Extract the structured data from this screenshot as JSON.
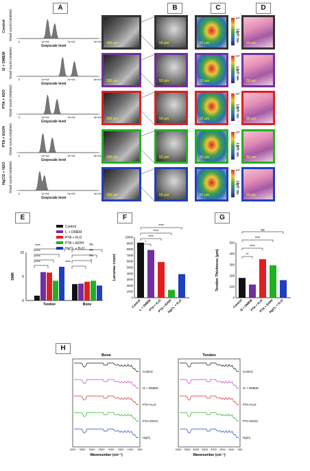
{
  "panel_letters": {
    "A": "A",
    "B": "B",
    "C": "C",
    "D": "D",
    "E": "E",
    "F": "F",
    "G": "G",
    "H": "H"
  },
  "rows": [
    {
      "label": "Control",
      "color": "#333333"
    },
    {
      "label": "I2 + DMEM",
      "color": "#7030a0"
    },
    {
      "label": "PTA + H2O",
      "color": "#e02020"
    },
    {
      "label": "PTA + EtOH",
      "color": "#22b022"
    },
    {
      "label": "HgCl2 + H2O",
      "color": "#1f3fbf"
    }
  ],
  "histogram": {
    "ylabel": "Voxel count (relative)",
    "xlabel": "Grayscale level",
    "ticks": [
      "0",
      "1e+04",
      "2e+04",
      "3e+04"
    ]
  },
  "scales": {
    "a": "300 μm",
    "b": "50 μm"
  },
  "colorbar": {
    "top": "10³",
    "mid": "10¹",
    "label": "Vol. (μm³)"
  },
  "chart_data": [
    {
      "type": "bar",
      "panel": "E",
      "categories": [
        "Tendon",
        "Bone"
      ],
      "series": [
        {
          "name": "Control",
          "values": [
            1.0,
            3.4
          ],
          "color": "#111111"
        },
        {
          "name": "I₂ + DMEM",
          "values": [
            5.9,
            3.5
          ],
          "color": "#7030a0"
        },
        {
          "name": "PTA + H₂O",
          "values": [
            5.8,
            3.9
          ],
          "color": "#e02020"
        },
        {
          "name": "PTA + EtOH",
          "values": [
            4.1,
            4.1
          ],
          "color": "#22b022"
        },
        {
          "name": "HgCl₂ + H₂O",
          "values": [
            7.0,
            3.1
          ],
          "color": "#1f3fbf"
        }
      ],
      "ylabel": "SNR",
      "ylim": [
        0,
        10
      ],
      "yticks": [
        "0",
        "5",
        "10"
      ],
      "significance": [
        "****",
        "****",
        "****",
        "****",
        "****",
        "*",
        "ns",
        "ns",
        "ns"
      ]
    },
    {
      "type": "bar",
      "panel": "F",
      "categories": [
        "Control",
        "I₂ + DMEM",
        "PTA + H₂O",
        "PTA + EtOH",
        "HgCl₂ + H₂O"
      ],
      "values": [
        9100,
        7900,
        5900,
        1300,
        3900
      ],
      "colors": [
        "#111111",
        "#7030a0",
        "#e02020",
        "#22b022",
        "#1f3fbf"
      ],
      "ylabel": "Lacunae count",
      "ylim": [
        0,
        10000
      ],
      "yticks": [
        "0",
        "1000",
        "2000",
        "3000",
        "4000",
        "5000",
        "6000",
        "7000",
        "8000",
        "9000",
        "10000"
      ],
      "significance": [
        "*",
        "****",
        "****",
        "****"
      ]
    },
    {
      "type": "bar",
      "panel": "G",
      "categories": [
        "Control",
        "I2 + DMEM",
        "PTA + H₂O",
        "PTA + EtOH",
        "HgCl₂ + H₂O"
      ],
      "values": [
        180,
        120,
        350,
        295,
        160
      ],
      "colors": [
        "#111111",
        "#7030a0",
        "#e02020",
        "#22b022",
        "#1f3fbf"
      ],
      "ylabel": "Tendon Thickness (μm)",
      "ylim": [
        0,
        500
      ],
      "yticks": [
        "0",
        "100",
        "200",
        "300",
        "400",
        "500"
      ],
      "significance": [
        "**",
        "****",
        "****",
        "ns"
      ]
    },
    {
      "type": "line",
      "panel": "H",
      "titles": [
        "Bone",
        "Tendon"
      ],
      "xlabel": "Wavenumber (cm⁻¹)",
      "xticks": [
        "4000",
        "3500",
        "3000",
        "2500",
        "2000",
        "1500",
        "1000",
        "500"
      ],
      "series_labels": [
        "Control",
        "I2 + DMEM",
        "PTA+H₂O",
        "PTA+EtOH",
        "HgCl₂"
      ],
      "series_colors": [
        "#111111",
        "#c040c0",
        "#e02020",
        "#22b022",
        "#1f3fbf"
      ]
    }
  ]
}
